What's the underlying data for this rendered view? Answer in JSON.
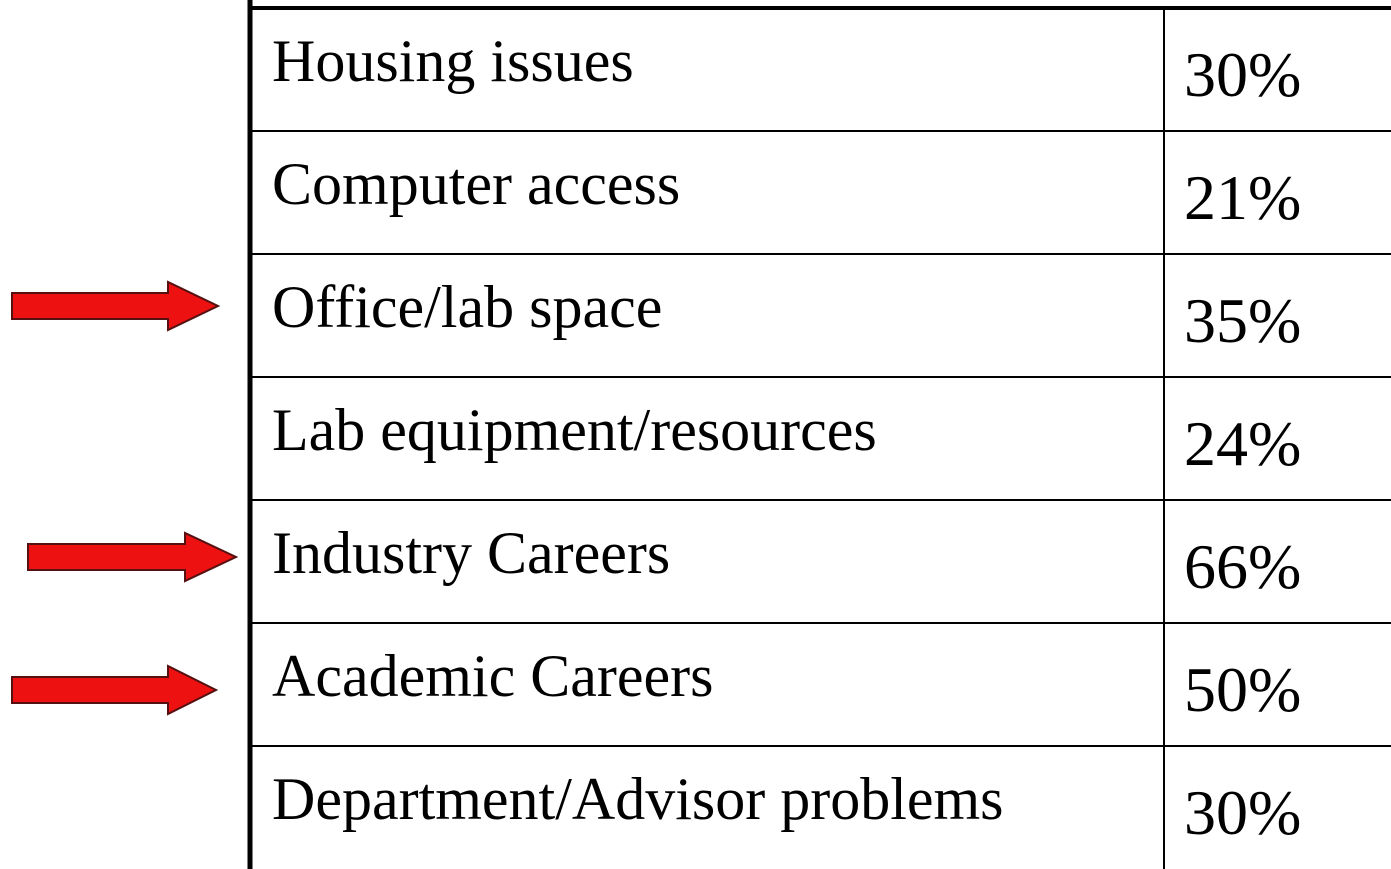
{
  "table": {
    "rows": [
      [
        "Housing issues",
        "30%"
      ],
      [
        "Computer access",
        "21%"
      ],
      [
        "Office/lab space",
        "35%"
      ],
      [
        "Lab equipment/resources",
        "24%"
      ],
      [
        "Industry Careers",
        "66%"
      ],
      [
        "Academic Careers",
        "50%"
      ],
      [
        "Department/Advisor problems",
        "30%"
      ]
    ]
  }
}
